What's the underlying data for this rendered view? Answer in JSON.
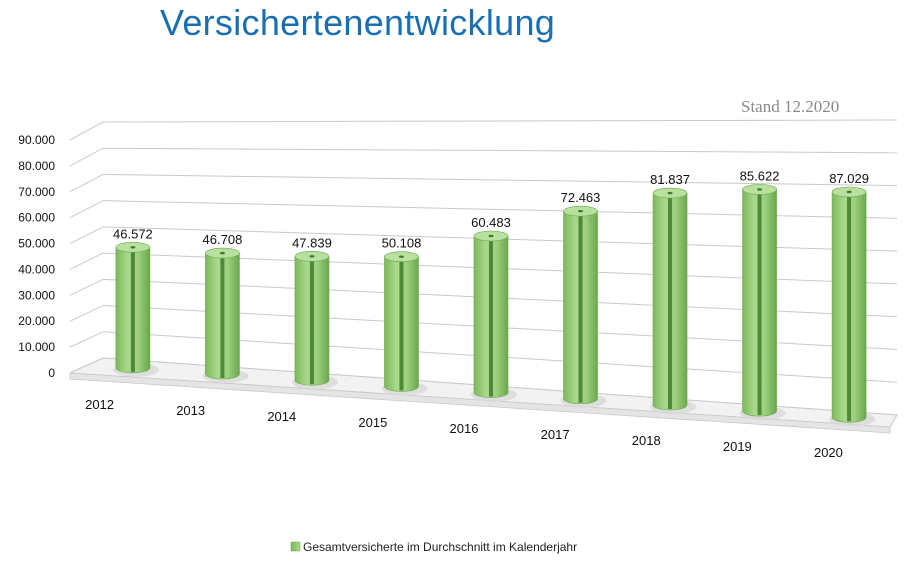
{
  "page": {
    "title": "Versichertenentwicklung",
    "stand": "Stand 12.2020"
  },
  "colors": {
    "title": "#1a6fb3",
    "bar": "#8cc66e",
    "bar_dark": "#3f7a2b",
    "grid": "#c9c9c9"
  },
  "chart_data": {
    "type": "bar",
    "style": "3d-cylinder",
    "categories": [
      "2012",
      "2013",
      "2014",
      "2015",
      "2016",
      "2017",
      "2018",
      "2019",
      "2020"
    ],
    "series": [
      {
        "name": "Gesamtversicherte im Durchschnitt im Kalenderjahr",
        "values": [
          46572,
          46708,
          47839,
          50108,
          60483,
          72463,
          81837,
          85622,
          87029
        ],
        "labels": [
          "46.572",
          "46.708",
          "47.839",
          "50.108",
          "60.483",
          "72.463",
          "81.837",
          "85.622",
          "87.029"
        ]
      }
    ],
    "ylim": [
      0,
      90000
    ],
    "yticks": [
      "0",
      "10.000",
      "20.000",
      "30.000",
      "40.000",
      "50.000",
      "60.000",
      "70.000",
      "80.000",
      "90.000"
    ],
    "grid": true,
    "legend_position": "bottom"
  }
}
